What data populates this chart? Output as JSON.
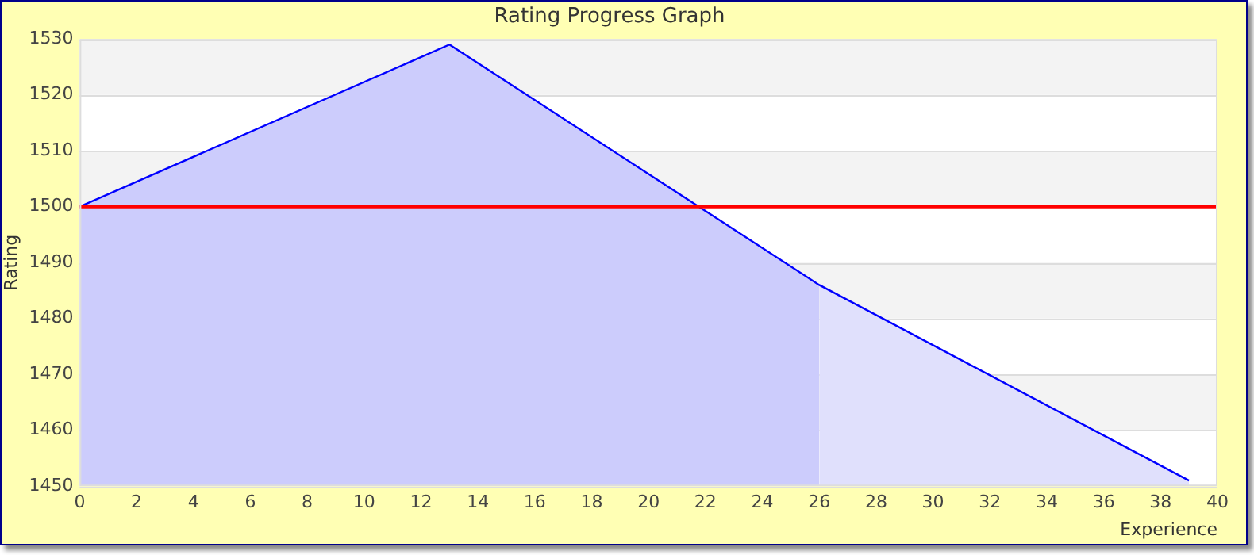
{
  "chart_data": {
    "type": "area",
    "title": "Rating Progress Graph",
    "xlabel": "Experience",
    "ylabel": "Rating",
    "xlim": [
      0,
      40
    ],
    "xticks": [
      0,
      2,
      4,
      6,
      8,
      10,
      12,
      14,
      16,
      18,
      20,
      22,
      24,
      26,
      28,
      30,
      32,
      34,
      36,
      38,
      40
    ],
    "ylim": [
      1450,
      1530
    ],
    "yticks": [
      1450,
      1460,
      1470,
      1480,
      1490,
      1500,
      1510,
      1520,
      1530
    ],
    "grid": "y",
    "legend": false,
    "marker": "none",
    "line_style": "solid",
    "series": [
      {
        "color": "#ccccfc",
        "x": [
          0,
          13,
          26
        ],
        "values": [
          1500,
          1529,
          1486
        ]
      },
      {
        "color": "#e0e0fc",
        "x": [
          26,
          39
        ],
        "values": [
          1486,
          1451
        ]
      },
      {
        "type": "line",
        "color": "#0000ff",
        "x": [
          0,
          13,
          26,
          39
        ],
        "values": [
          1500,
          1529,
          1486,
          1451
        ]
      }
    ],
    "ref_lines": [
      {
        "axis": "y",
        "value": 1500,
        "color": "#ff0000"
      }
    ]
  }
}
